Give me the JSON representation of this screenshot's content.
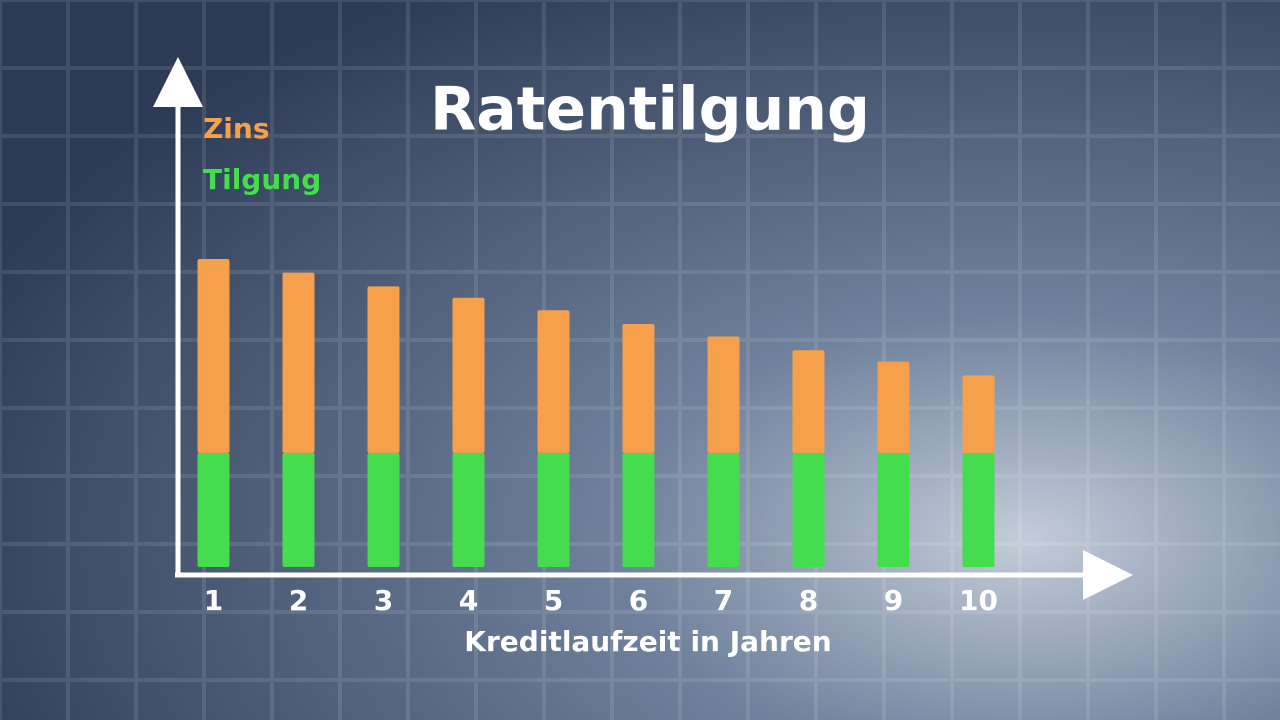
{
  "chart_data": {
    "type": "stacked_bar",
    "title": "Ratentilgung",
    "x_label": "Kreditlaufzeit in Jahren",
    "categories": [
      "1",
      "2",
      "3",
      "4",
      "5",
      "6",
      "7",
      "8",
      "9",
      "10"
    ],
    "series": [
      {
        "name": "Tilgung",
        "color": "#45dc4d",
        "values": [
          10,
          10,
          10,
          10,
          10,
          10,
          10,
          10,
          10,
          10
        ]
      },
      {
        "name": "Zins",
        "color": "#f7a04b",
        "values": [
          17,
          15.8,
          14.6,
          13.6,
          12.5,
          11.3,
          10.2,
          9,
          8,
          6.8
        ]
      }
    ],
    "ylim": [
      0,
      44
    ]
  }
}
